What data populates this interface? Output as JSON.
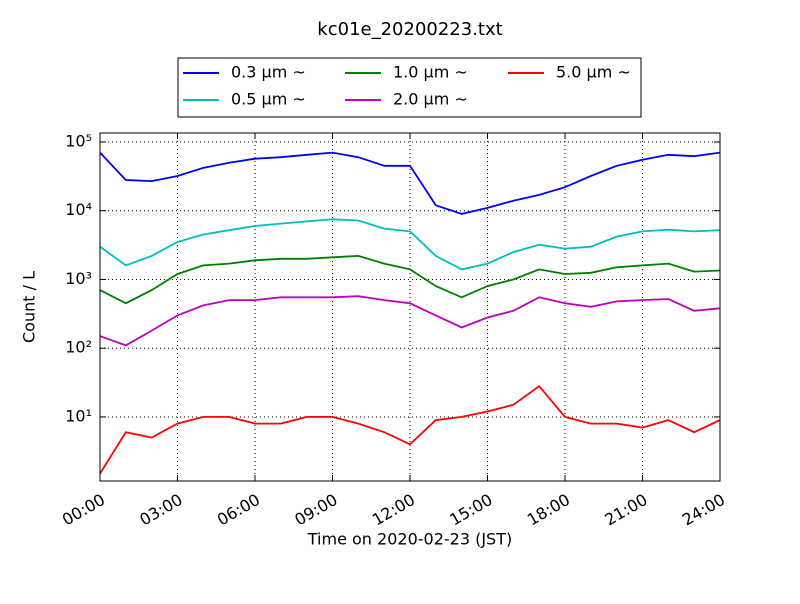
{
  "chart_data": {
    "type": "line",
    "title": "kc01e_20200223.txt",
    "x_label": "Time on 2020-02-23 (JST)",
    "y_label": "Count / L",
    "y_scale": "log",
    "grid": true,
    "legend": "top",
    "x": [
      0,
      1,
      2,
      3,
      4,
      5,
      6,
      7,
      8,
      9,
      10,
      11,
      12,
      13,
      14,
      15,
      16,
      17,
      18,
      19,
      20,
      21,
      22,
      23,
      24
    ],
    "xlim": [
      0,
      24
    ],
    "xticks": [
      {
        "value": 0,
        "label": "00:00"
      },
      {
        "value": 3,
        "label": "03:00"
      },
      {
        "value": 6,
        "label": "06:00"
      },
      {
        "value": 9,
        "label": "09:00"
      },
      {
        "value": 12,
        "label": "12:00"
      },
      {
        "value": 15,
        "label": "15:00"
      },
      {
        "value": 18,
        "label": "18:00"
      },
      {
        "value": 21,
        "label": "21:00"
      },
      {
        "value": 24,
        "label": "24:00"
      }
    ],
    "ylim": [
      1.17,
      135000
    ],
    "yticks": [
      {
        "value": 10,
        "label": "10¹"
      },
      {
        "value": 100,
        "label": "10²"
      },
      {
        "value": 1000,
        "label": "10³"
      },
      {
        "value": 10000,
        "label": "10⁴"
      },
      {
        "value": 100000,
        "label": "10⁵"
      }
    ],
    "series": [
      {
        "name": "0.3 μm ~",
        "color": "#0000ff",
        "values": [
          70000,
          28000,
          27000,
          32000,
          42000,
          50000,
          57000,
          60000,
          65000,
          70000,
          60000,
          45000,
          45000,
          12000,
          9000,
          11000,
          14000,
          17000,
          22000,
          32000,
          45000,
          55000,
          65000,
          62000,
          70000
        ]
      },
      {
        "name": "0.5 μm ~",
        "color": "#00bfbf",
        "values": [
          3000,
          1600,
          2200,
          3500,
          4500,
          5200,
          6000,
          6500,
          7000,
          7500,
          7200,
          5500,
          5000,
          2200,
          1400,
          1700,
          2500,
          3200,
          2800,
          3000,
          4200,
          5000,
          5300,
          5000,
          5200
        ]
      },
      {
        "name": "1.0 μm ~",
        "color": "#008000",
        "values": [
          700,
          450,
          700,
          1200,
          1600,
          1700,
          1900,
          2000,
          2000,
          2100,
          2200,
          1700,
          1400,
          800,
          550,
          800,
          1000,
          1400,
          1200,
          1250,
          1500,
          1600,
          1700,
          1300,
          1350
        ]
      },
      {
        "name": "2.0 μm ~",
        "color": "#bf00bf",
        "values": [
          150,
          110,
          180,
          300,
          420,
          500,
          500,
          550,
          550,
          550,
          570,
          500,
          450,
          300,
          200,
          280,
          350,
          550,
          450,
          400,
          480,
          500,
          520,
          350,
          380
        ]
      },
      {
        "name": "5.0 μm ~",
        "color": "#ff0000",
        "values": [
          1.5,
          6,
          5,
          8,
          10,
          10,
          8,
          8,
          10,
          10,
          8,
          6,
          4,
          9,
          10,
          12,
          15,
          28,
          10,
          8,
          8,
          7,
          9,
          6,
          9
        ]
      }
    ]
  }
}
